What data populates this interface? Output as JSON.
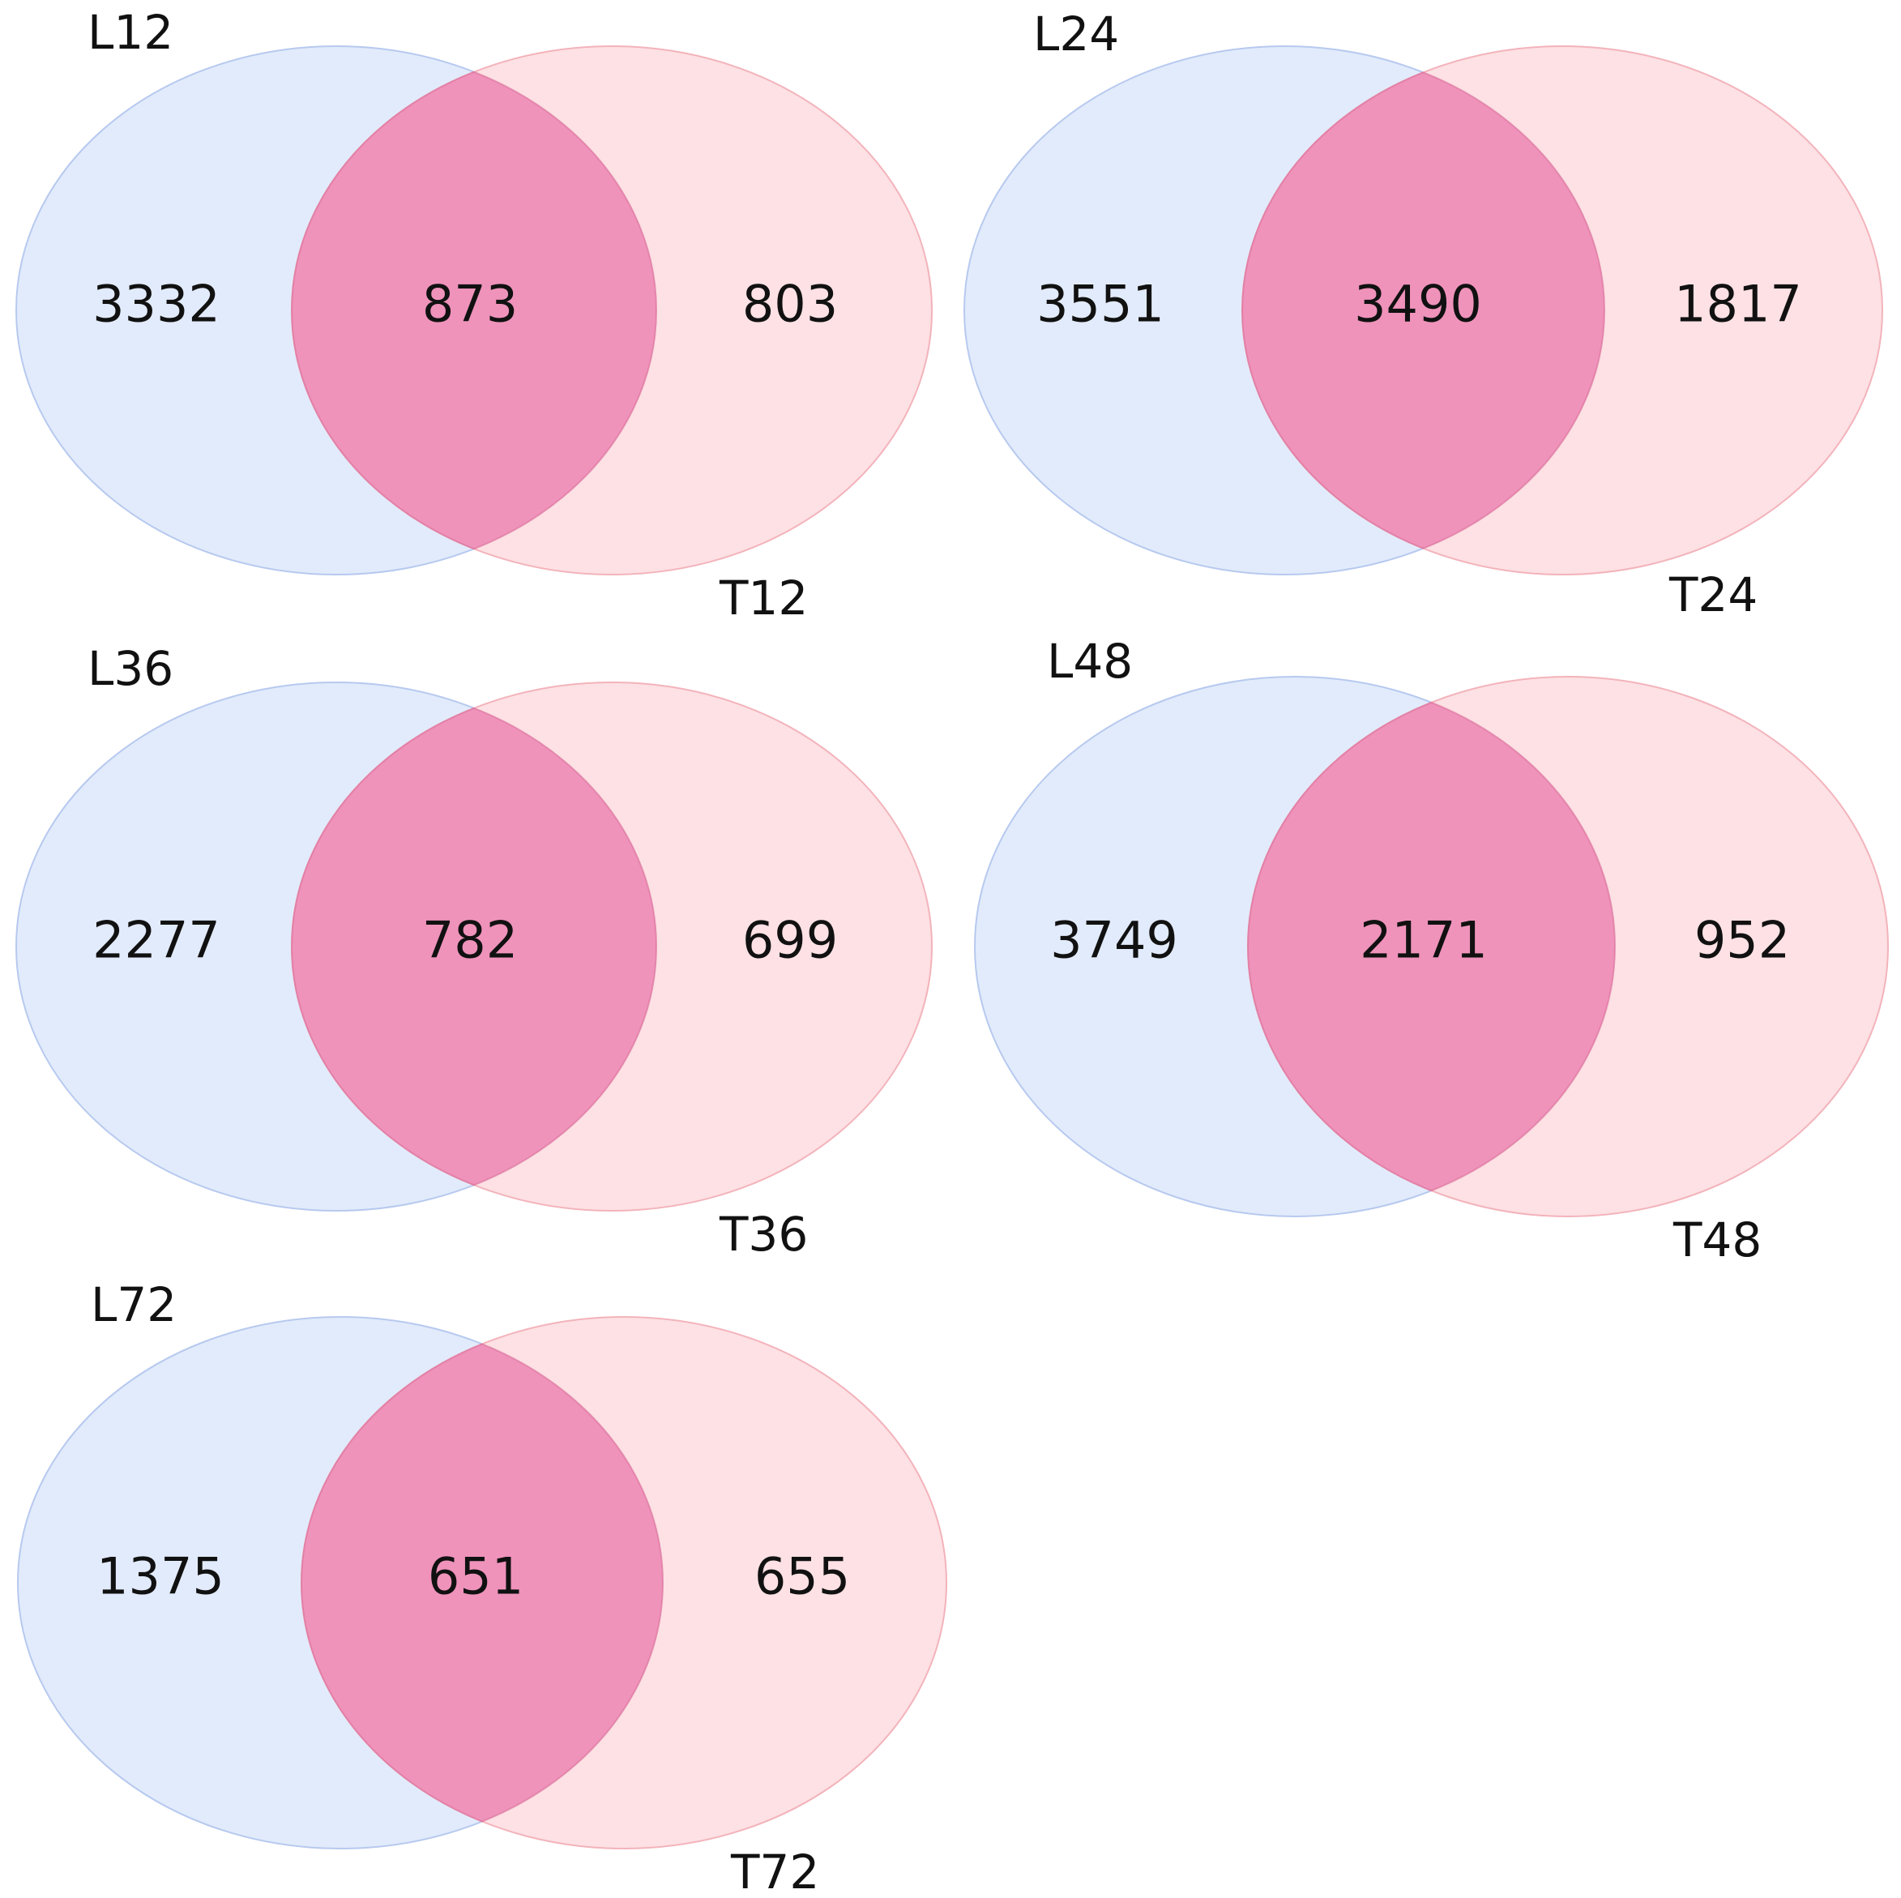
{
  "colors": {
    "left_set_fill": "#e2ebfb",
    "left_set_stroke": "#b7c9ef",
    "right_set_fill": "#fde1e4",
    "right_set_stroke": "#f3b3bb",
    "overlap_fill": "#ef93bb",
    "overlap_stroke": "#d86a98"
  },
  "diagrams": [
    {
      "left_label": "L12",
      "right_label": "T12",
      "left_only": "3332",
      "overlap": "873",
      "right_only": "803"
    },
    {
      "left_label": "L24",
      "right_label": "T24",
      "left_only": "3551",
      "overlap": "3490",
      "right_only": "1817"
    },
    {
      "left_label": "L36",
      "right_label": "T36",
      "left_only": "2277",
      "overlap": "782",
      "right_only": "699"
    },
    {
      "left_label": "L48",
      "right_label": "T48",
      "left_only": "3749",
      "overlap": "2171",
      "right_only": "952"
    },
    {
      "left_label": "L72",
      "right_label": "T72",
      "left_only": "1375",
      "overlap": "651",
      "right_only": "655"
    }
  ]
}
